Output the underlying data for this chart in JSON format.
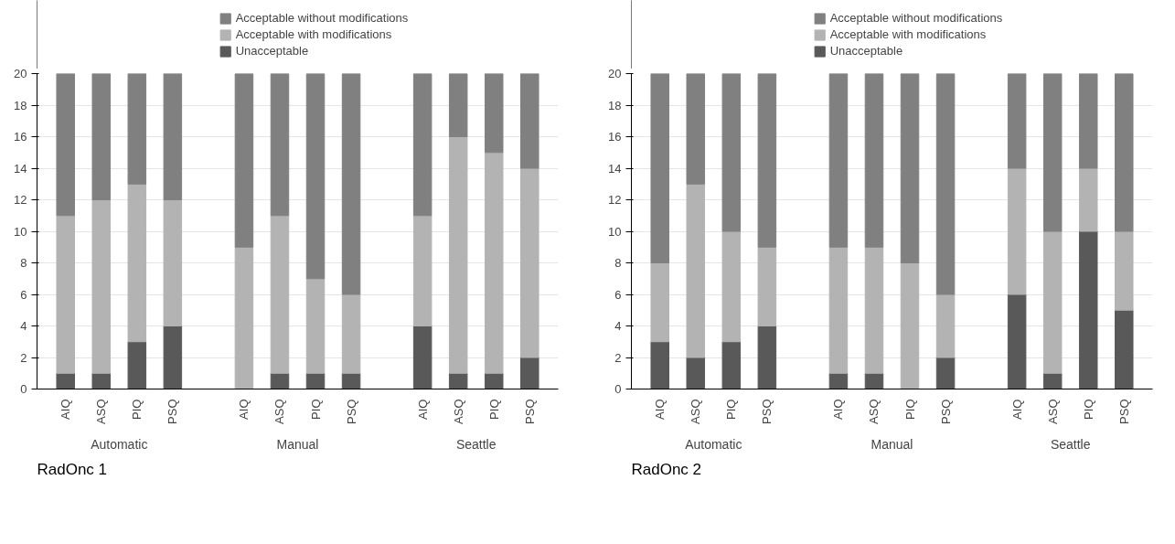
{
  "chart_data": [
    {
      "type": "bar",
      "title": "RadOnc 1",
      "stacked": true,
      "legend": "top",
      "grid": "y",
      "categories": [
        "AIQ",
        "ASQ",
        "PIQ",
        "PSQ",
        null,
        "AIQ",
        "ASQ",
        "PIQ",
        "PSQ",
        null,
        "AIQ",
        "ASQ",
        "PIQ",
        "PSQ"
      ],
      "annotations": [
        "Automatic",
        "Manual",
        "Seattle"
      ],
      "ylim": [
        0,
        20
      ],
      "yticks": [
        0,
        2,
        4,
        6,
        8,
        10,
        12,
        14,
        16,
        18,
        20
      ],
      "series": [
        {
          "name": "Unacceptable",
          "color": "#595959",
          "values": [
            1,
            1,
            3,
            4,
            null,
            0,
            1,
            1,
            1,
            null,
            4,
            1,
            1,
            2
          ]
        },
        {
          "name": "Acceptable with modifications",
          "color": "#b3b3b3",
          "values": [
            10,
            11,
            10,
            8,
            null,
            9,
            10,
            6,
            5,
            null,
            7,
            15,
            14,
            12
          ]
        },
        {
          "name": "Acceptable without modifications",
          "color": "#808080",
          "values": [
            9,
            8,
            7,
            8,
            null,
            11,
            9,
            13,
            14,
            null,
            9,
            4,
            5,
            6
          ]
        }
      ]
    },
    {
      "type": "bar",
      "title": "RadOnc 2",
      "stacked": true,
      "legend": "top",
      "grid": "y",
      "categories": [
        "AIQ",
        "ASQ",
        "PIQ",
        "PSQ",
        null,
        "AIQ",
        "ASQ",
        "PIQ",
        "PSQ",
        null,
        "AIQ",
        "ASQ",
        "PIQ",
        "PSQ"
      ],
      "annotations": [
        "Automatic",
        "Manual",
        "Seattle"
      ],
      "ylim": [
        0,
        20
      ],
      "yticks": [
        0,
        2,
        4,
        6,
        8,
        10,
        12,
        14,
        16,
        18,
        20
      ],
      "series": [
        {
          "name": "Unacceptable",
          "color": "#595959",
          "values": [
            3,
            2,
            3,
            4,
            null,
            1,
            1,
            0,
            2,
            null,
            6,
            1,
            10,
            5
          ]
        },
        {
          "name": "Acceptable with modifications",
          "color": "#b3b3b3",
          "values": [
            5,
            11,
            7,
            5,
            null,
            8,
            8,
            8,
            4,
            null,
            8,
            9,
            4,
            5
          ]
        },
        {
          "name": "Acceptable without modifications",
          "color": "#808080",
          "values": [
            12,
            7,
            10,
            11,
            null,
            11,
            11,
            12,
            14,
            null,
            6,
            10,
            6,
            10
          ]
        }
      ]
    }
  ]
}
